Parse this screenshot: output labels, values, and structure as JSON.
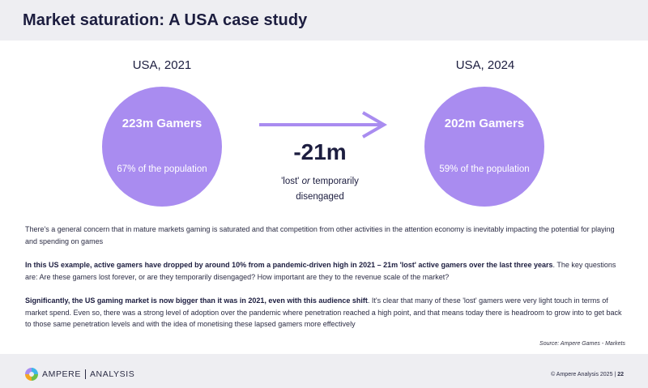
{
  "header": {
    "title": "Market saturation: A USA case study"
  },
  "left": {
    "year": "USA, 2021",
    "gamers": "223m Gamers",
    "population": "67% of the population"
  },
  "right": {
    "year": "USA, 2024",
    "gamers": "202m Gamers",
    "population": "59% of the population"
  },
  "change": {
    "value": "-21m",
    "note_prefix": "'lost' ",
    "note_or": "or",
    "note_suffix": " temporarily disengaged"
  },
  "paragraphs": {
    "p1": "There's a general concern that in mature markets gaming is saturated and that competition from other activities in the attention economy is inevitably impacting the potential for playing and spending on games",
    "p2_bold": "In this US example, active gamers have dropped by around 10% from a pandemic-driven high in 2021 – 21m 'lost' active gamers over the last three years",
    "p2_rest": ". The key questions are: Are these gamers lost forever, or are they temporarily disengaged? How important are they to the revenue scale of the market?",
    "p3_bold": "Significantly, the US gaming market is now bigger than it was in 2021, even with this audience shift",
    "p3_rest": ". It's clear that many of these 'lost' gamers were very light touch in terms of market spend. Even so, there was a strong level of adoption over the pandemic where penetration reached a high point, and that means today there is headroom to grow into to get back to those same penetration levels and with the idea of monetising these lapsed gamers more effectively"
  },
  "source": "Source: Ampere Games - Markets",
  "footer": {
    "brand": "AMPERE",
    "brand_suffix": "ANALYSIS",
    "copyright": "© Ampere Analysis 2025",
    "separator": "|",
    "page": "22"
  },
  "colors": {
    "circle": "#a98cf0",
    "arrow": "#a98cf0",
    "header_bg": "#eeeef2"
  }
}
